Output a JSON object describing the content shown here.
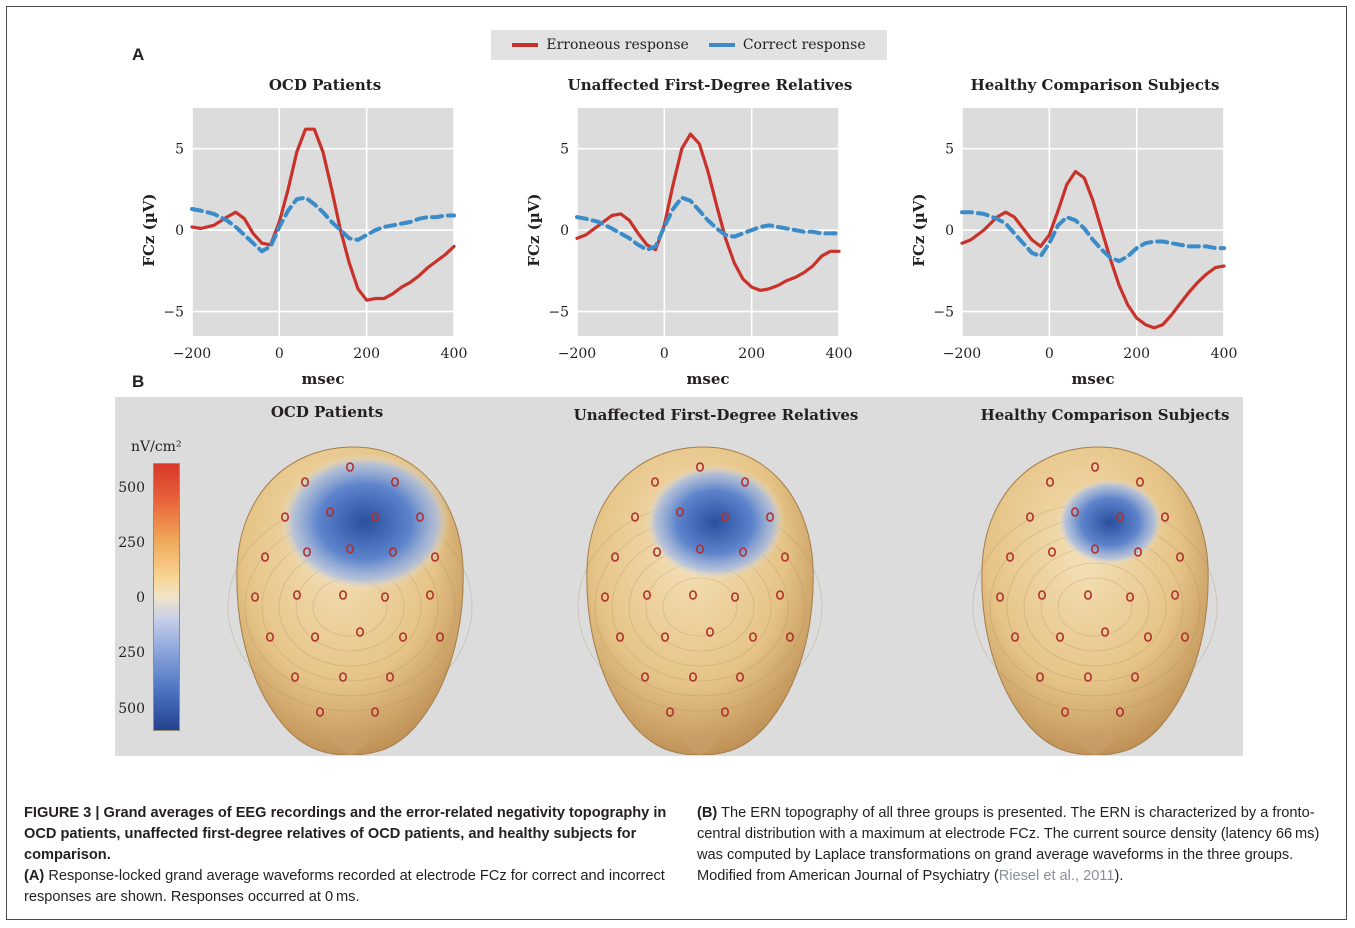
{
  "panels": {
    "a": "A",
    "b": "B"
  },
  "legend": [
    {
      "label": "Erroneous response",
      "color": "#c8322b"
    },
    {
      "label": "Correct response",
      "color": "#3a8bc8"
    }
  ],
  "chart_data": [
    {
      "type": "line",
      "title": "OCD Patients",
      "xlabel": "msec",
      "ylabel": "FCz (µV)",
      "xlim": [
        -200,
        400
      ],
      "ylim": [
        -6.5,
        7.5
      ],
      "xticks": [
        -200,
        0,
        200,
        400
      ],
      "yticks": [
        5,
        0,
        -5
      ],
      "ytick_labels": [
        "5",
        "0",
        "−5"
      ],
      "xtick_labels": [
        "−200",
        "0",
        "200",
        "400"
      ],
      "grid": true,
      "series": [
        {
          "name": "Erroneous response",
          "color": "#c8322b",
          "dashed": false,
          "x": [
            -200,
            -180,
            -150,
            -120,
            -100,
            -80,
            -60,
            -40,
            -20,
            0,
            20,
            40,
            60,
            80,
            100,
            120,
            140,
            160,
            180,
            200,
            220,
            240,
            260,
            280,
            300,
            320,
            340,
            360,
            380,
            400
          ],
          "y": [
            0.2,
            0.1,
            0.3,
            0.8,
            1.1,
            0.7,
            -0.2,
            -0.8,
            -0.9,
            0.5,
            2.5,
            4.8,
            6.2,
            6.2,
            4.8,
            2.5,
            0.0,
            -2.0,
            -3.6,
            -4.3,
            -4.2,
            -4.2,
            -3.9,
            -3.5,
            -3.2,
            -2.8,
            -2.3,
            -1.9,
            -1.5,
            -1.0
          ]
        },
        {
          "name": "Correct response",
          "color": "#3a8bc8",
          "dashed": true,
          "x": [
            -200,
            -180,
            -150,
            -120,
            -100,
            -80,
            -60,
            -40,
            -20,
            0,
            20,
            40,
            60,
            80,
            100,
            120,
            140,
            160,
            180,
            200,
            220,
            240,
            260,
            280,
            300,
            320,
            340,
            360,
            380,
            400
          ],
          "y": [
            1.3,
            1.2,
            1.0,
            0.6,
            0.2,
            -0.3,
            -0.8,
            -1.3,
            -1.0,
            0.2,
            1.2,
            1.9,
            2.0,
            1.6,
            1.1,
            0.5,
            0.0,
            -0.5,
            -0.6,
            -0.3,
            0.0,
            0.2,
            0.3,
            0.4,
            0.5,
            0.7,
            0.8,
            0.8,
            0.9,
            0.9
          ]
        }
      ]
    },
    {
      "type": "line",
      "title": "Unaffected First-Degree Relatives",
      "xlabel": "msec",
      "ylabel": "FCz (µV)",
      "xlim": [
        -200,
        400
      ],
      "ylim": [
        -6.5,
        7.5
      ],
      "xticks": [
        -200,
        0,
        200,
        400
      ],
      "yticks": [
        5,
        0,
        -5
      ],
      "ytick_labels": [
        "5",
        "0",
        "−5"
      ],
      "xtick_labels": [
        "−200",
        "0",
        "200",
        "400"
      ],
      "grid": true,
      "series": [
        {
          "name": "Erroneous response",
          "color": "#c8322b",
          "dashed": false,
          "x": [
            -200,
            -180,
            -150,
            -120,
            -100,
            -80,
            -60,
            -40,
            -20,
            0,
            20,
            40,
            60,
            80,
            100,
            120,
            140,
            160,
            180,
            200,
            220,
            240,
            260,
            280,
            300,
            320,
            340,
            360,
            380,
            400
          ],
          "y": [
            -0.5,
            -0.3,
            0.3,
            0.9,
            1.0,
            0.6,
            -0.2,
            -0.9,
            -1.2,
            0.3,
            2.8,
            5.0,
            5.9,
            5.3,
            3.6,
            1.5,
            -0.5,
            -2.0,
            -3.0,
            -3.5,
            -3.7,
            -3.6,
            -3.4,
            -3.1,
            -2.9,
            -2.6,
            -2.2,
            -1.6,
            -1.3,
            -1.3
          ]
        },
        {
          "name": "Correct response",
          "color": "#3a8bc8",
          "dashed": true,
          "x": [
            -200,
            -180,
            -150,
            -120,
            -100,
            -80,
            -60,
            -40,
            -20,
            0,
            20,
            40,
            60,
            80,
            100,
            120,
            140,
            160,
            180,
            200,
            220,
            240,
            260,
            280,
            300,
            320,
            340,
            360,
            380,
            400
          ],
          "y": [
            0.8,
            0.7,
            0.5,
            0.1,
            -0.2,
            -0.5,
            -0.9,
            -1.2,
            -1.0,
            0.2,
            1.3,
            2.0,
            1.8,
            1.2,
            0.6,
            0.1,
            -0.3,
            -0.4,
            -0.2,
            0.0,
            0.2,
            0.3,
            0.2,
            0.1,
            0.0,
            -0.1,
            -0.1,
            -0.2,
            -0.2,
            -0.2
          ]
        }
      ]
    },
    {
      "type": "line",
      "title": "Healthy Comparison Subjects",
      "xlabel": "msec",
      "ylabel": "FCz (µV)",
      "xlim": [
        -200,
        400
      ],
      "ylim": [
        -6.5,
        7.5
      ],
      "xticks": [
        -200,
        0,
        200,
        400
      ],
      "yticks": [
        5,
        0,
        -5
      ],
      "ytick_labels": [
        "5",
        "0",
        "−5"
      ],
      "xtick_labels": [
        "−200",
        "0",
        "200",
        "400"
      ],
      "grid": true,
      "series": [
        {
          "name": "Erroneous response",
          "color": "#c8322b",
          "dashed": false,
          "x": [
            -200,
            -180,
            -150,
            -120,
            -100,
            -80,
            -60,
            -40,
            -20,
            0,
            20,
            40,
            60,
            80,
            100,
            120,
            140,
            160,
            180,
            200,
            220,
            240,
            260,
            280,
            300,
            320,
            340,
            360,
            380,
            400
          ],
          "y": [
            -0.8,
            -0.6,
            0.0,
            0.8,
            1.1,
            0.8,
            0.1,
            -0.6,
            -1.0,
            -0.3,
            1.2,
            2.8,
            3.6,
            3.2,
            1.8,
            0.0,
            -1.8,
            -3.4,
            -4.6,
            -5.4,
            -5.8,
            -6.0,
            -5.8,
            -5.2,
            -4.5,
            -3.8,
            -3.2,
            -2.7,
            -2.3,
            -2.2
          ]
        },
        {
          "name": "Correct response",
          "color": "#3a8bc8",
          "dashed": true,
          "x": [
            -200,
            -180,
            -150,
            -120,
            -100,
            -80,
            -60,
            -40,
            -20,
            0,
            20,
            40,
            60,
            80,
            100,
            120,
            140,
            160,
            180,
            200,
            220,
            240,
            260,
            280,
            300,
            320,
            340,
            360,
            380,
            400
          ],
          "y": [
            1.1,
            1.1,
            1.0,
            0.7,
            0.4,
            -0.2,
            -0.8,
            -1.4,
            -1.6,
            -0.8,
            0.3,
            0.8,
            0.6,
            0.1,
            -0.6,
            -1.2,
            -1.7,
            -1.9,
            -1.6,
            -1.1,
            -0.8,
            -0.7,
            -0.7,
            -0.8,
            -0.9,
            -1.0,
            -1.0,
            -1.0,
            -1.1,
            -1.1
          ]
        }
      ]
    }
  ],
  "topography": {
    "titles": [
      "OCD Patients",
      "Unaffected First-Degree Relatives",
      "Healthy Comparison Subjects"
    ],
    "unit": "nV/cm²",
    "colorbar_labels": [
      "500",
      "250",
      "0",
      "250",
      "500"
    ]
  },
  "caption": {
    "left": [
      {
        "bold": true,
        "text": "FIGURE 3 | Grand averages of EEG recordings and the error-related negativity topography in OCD patients, unaffected first-degree relatives of OCD patients, and healthy subjects for comparison."
      },
      {
        "bold": true,
        "text": "(A)"
      },
      {
        "bold": false,
        "text": " Response-locked grand average waveforms recorded at electrode FCz for correct and incorrect responses are shown. Responses occurred at 0 ms."
      }
    ],
    "right_b": "(B)",
    "right_text": " The ERN topography of all three groups is presented. The ERN is characterized by a fronto-central distribution with a maximum at electrode FCz. The current source density (latency 66 ms) was computed by Laplace transformations on grand average waveforms in the three groups. Modified from American Journal of Psychiatry (",
    "right_cite": "Riesel et al., 2011",
    "right_end": ")."
  }
}
